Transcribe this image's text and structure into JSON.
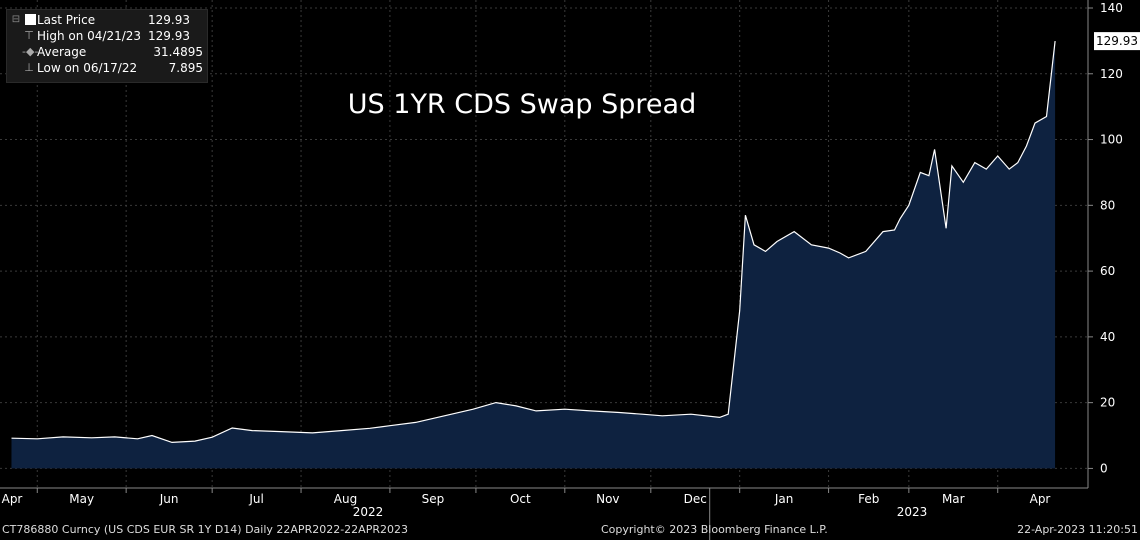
{
  "legend": {
    "last_price_label": "Last Price",
    "last_price_value": "129.93",
    "high_label": "High on 04/21/23",
    "high_value": "129.93",
    "average_label": "Average",
    "average_value": "31.4895",
    "low_label": "Low on 06/17/22",
    "low_value": "7.895"
  },
  "footer": {
    "ticker": "CT786880 Curncy (US CDS EUR SR 1Y D14)  Daily 22APR2022-22APR2023",
    "copyright": "Copyright© 2023 Bloomberg Finance L.P.",
    "timestamp": "22-Apr-2023 11:20:51"
  },
  "colors": {
    "line": "#ffffff",
    "fill": "#0e2240",
    "grid": "#3a3a3a",
    "background": "#000000"
  },
  "chart_data": {
    "type": "area",
    "title": "US 1YR CDS Swap Spread",
    "y_ticks": [
      "0",
      "20",
      "40",
      "60",
      "80",
      "100",
      "120",
      "140"
    ],
    "ylim": [
      -2,
      140
    ],
    "last_value_label": "129.93",
    "x_month_labels": [
      "Apr",
      "May",
      "Jun",
      "Jul",
      "Aug",
      "Sep",
      "Oct",
      "Nov",
      "Dec",
      "Jan",
      "Feb",
      "Mar",
      "Apr"
    ],
    "x_year_labels": [
      "2022",
      "2023"
    ],
    "series": [
      {
        "values": [
          [
            "2022-04-22",
            9.2
          ],
          [
            "2022-05-01",
            9.0
          ],
          [
            "2022-05-10",
            9.6
          ],
          [
            "2022-05-20",
            9.3
          ],
          [
            "2022-05-28",
            9.6
          ],
          [
            "2022-06-05",
            9.0
          ],
          [
            "2022-06-10",
            10.0
          ],
          [
            "2022-06-17",
            7.9
          ],
          [
            "2022-06-25",
            8.3
          ],
          [
            "2022-07-01",
            9.5
          ],
          [
            "2022-07-08",
            12.3
          ],
          [
            "2022-07-15",
            11.5
          ],
          [
            "2022-07-25",
            11.2
          ],
          [
            "2022-08-05",
            10.8
          ],
          [
            "2022-08-15",
            11.5
          ],
          [
            "2022-08-25",
            12.2
          ],
          [
            "2022-09-01",
            13.0
          ],
          [
            "2022-09-10",
            14.0
          ],
          [
            "2022-09-20",
            16.0
          ],
          [
            "2022-09-30",
            18.0
          ],
          [
            "2022-10-08",
            20.0
          ],
          [
            "2022-10-15",
            19.0
          ],
          [
            "2022-10-22",
            17.5
          ],
          [
            "2022-11-01",
            18.0
          ],
          [
            "2022-11-10",
            17.5
          ],
          [
            "2022-11-20",
            17.0
          ],
          [
            "2022-11-28",
            16.5
          ],
          [
            "2022-12-05",
            16.0
          ],
          [
            "2022-12-15",
            16.5
          ],
          [
            "2022-12-25",
            15.5
          ],
          [
            "2022-12-28",
            16.5
          ],
          [
            "2023-01-01",
            48.0
          ],
          [
            "2023-01-03",
            77.0
          ],
          [
            "2023-01-06",
            68.0
          ],
          [
            "2023-01-10",
            66.0
          ],
          [
            "2023-01-14",
            69.0
          ],
          [
            "2023-01-20",
            72.0
          ],
          [
            "2023-01-26",
            68.0
          ],
          [
            "2023-02-01",
            67.0
          ],
          [
            "2023-02-05",
            65.5
          ],
          [
            "2023-02-08",
            64.0
          ],
          [
            "2023-02-14",
            66.0
          ],
          [
            "2023-02-20",
            72.0
          ],
          [
            "2023-02-24",
            72.5
          ],
          [
            "2023-02-26",
            76.0
          ],
          [
            "2023-03-01",
            80.0
          ],
          [
            "2023-03-05",
            90.0
          ],
          [
            "2023-03-08",
            89.0
          ],
          [
            "2023-03-10",
            97.0
          ],
          [
            "2023-03-14",
            73.0
          ],
          [
            "2023-03-16",
            92.0
          ],
          [
            "2023-03-20",
            87.0
          ],
          [
            "2023-03-24",
            93.0
          ],
          [
            "2023-03-28",
            91.0
          ],
          [
            "2023-04-01",
            95.0
          ],
          [
            "2023-04-05",
            91.0
          ],
          [
            "2023-04-08",
            93.0
          ],
          [
            "2023-04-11",
            98.0
          ],
          [
            "2023-04-14",
            105.0
          ],
          [
            "2023-04-18",
            107.0
          ],
          [
            "2023-04-21",
            129.93
          ]
        ]
      }
    ]
  }
}
